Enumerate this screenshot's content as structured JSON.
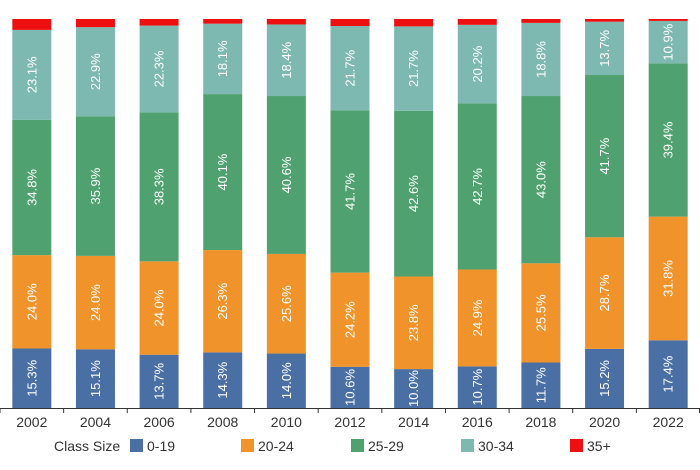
{
  "chart_data": {
    "type": "bar",
    "stacked": true,
    "normalized": true,
    "title": "",
    "xlabel": "",
    "ylabel": "",
    "ylim": [
      0,
      100
    ],
    "categories": [
      "2002",
      "2004",
      "2006",
      "2008",
      "2010",
      "2012",
      "2014",
      "2016",
      "2018",
      "2020",
      "2022"
    ],
    "series": [
      {
        "name": "0-19",
        "color": "#4a6fa5",
        "values": [
          15.3,
          15.1,
          13.7,
          14.3,
          14.0,
          10.6,
          10.0,
          10.7,
          11.7,
          15.2,
          17.4
        ]
      },
      {
        "name": "20-24",
        "color": "#f0932b",
        "values": [
          24.0,
          24.0,
          24.0,
          26.3,
          25.6,
          24.2,
          23.8,
          24.9,
          25.5,
          28.7,
          31.8
        ]
      },
      {
        "name": "25-29",
        "color": "#4fa26f",
        "values": [
          34.8,
          35.9,
          38.3,
          40.1,
          40.6,
          41.7,
          42.6,
          42.7,
          43.0,
          41.7,
          39.4
        ]
      },
      {
        "name": "30-34",
        "color": "#7db9b1",
        "values": [
          23.1,
          22.9,
          22.3,
          18.1,
          18.4,
          21.7,
          21.7,
          20.2,
          18.8,
          13.7,
          10.9
        ]
      },
      {
        "name": "35+",
        "color": "#ee1010",
        "values": [
          2.8,
          2.1,
          1.7,
          1.2,
          1.4,
          1.8,
          1.9,
          1.5,
          1.0,
          0.7,
          0.5
        ]
      }
    ],
    "data_labels": {
      "0-19": [
        "15.3%",
        "15.1%",
        "13.7%",
        "14.3%",
        "14.0%",
        "10.6%",
        "10.0%",
        "10.7%",
        "11.7%",
        "15.2%",
        "17.4%"
      ],
      "20-24": [
        "24.0%",
        "24.0%",
        "24.0%",
        "26.3%",
        "25.6%",
        "24.2%",
        "23.8%",
        "24.9%",
        "25.5%",
        "28.7%",
        "31.8%"
      ],
      "25-29": [
        "34.8%",
        "35.9%",
        "38.3%",
        "40.1%",
        "40.6%",
        "41.7%",
        "42.6%",
        "42.7%",
        "43.0%",
        "41.7%",
        "39.4%"
      ],
      "30-34": [
        "23.1%",
        "22.9%",
        "22.3%",
        "18.1%",
        "18.4%",
        "21.7%",
        "21.7%",
        "20.2%",
        "18.8%",
        "13.7%",
        "10.9%"
      ]
    },
    "legend": {
      "title": "Class Size",
      "position": "bottom"
    },
    "grid": false
  }
}
